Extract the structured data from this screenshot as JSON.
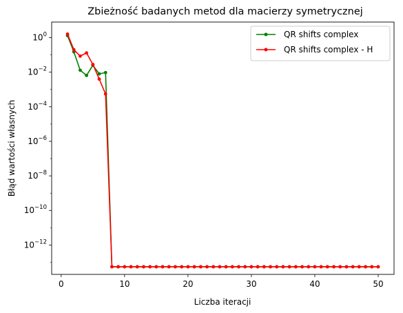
{
  "chart_data": {
    "type": "line",
    "title": "Zbieżność badanych metod dla macierzy symetrycznej",
    "xlabel": "Liczba iteracji",
    "ylabel": "Błąd wartości własnych",
    "yscale": "log",
    "xlim": [
      -1.5,
      52.5
    ],
    "ylim": [
      -13.7,
      0.9
    ],
    "x_ticks": [
      0,
      10,
      20,
      30,
      40,
      50
    ],
    "x_tick_labels": [
      "0",
      "10",
      "20",
      "30",
      "40",
      "50"
    ],
    "y_ticks": [
      0,
      -2,
      -4,
      -6,
      -8,
      -10,
      -12
    ],
    "y_tick_labels": [
      {
        "base": "10",
        "exp": "0"
      },
      {
        "base": "10",
        "exp": "−2"
      },
      {
        "base": "10",
        "exp": "−4"
      },
      {
        "base": "10",
        "exp": "−6"
      },
      {
        "base": "10",
        "exp": "−8"
      },
      {
        "base": "10",
        "exp": "−10"
      },
      {
        "base": "10",
        "exp": "−12"
      }
    ],
    "grid": false,
    "legend_position": "top-right",
    "series": [
      {
        "name": "QR shifts complex",
        "color": "#008000",
        "x": [
          1,
          2,
          3,
          4,
          5,
          6,
          7,
          8,
          9,
          10,
          11,
          12,
          13,
          14,
          15,
          16,
          17,
          18,
          19,
          20,
          21,
          22,
          23,
          24,
          25,
          26,
          27,
          28,
          29,
          30,
          31,
          32,
          33,
          34,
          35,
          36,
          37,
          38,
          39,
          40,
          41,
          42,
          43,
          44,
          45,
          46,
          47,
          48,
          49,
          50
        ],
        "y": [
          1.3,
          0.15,
          0.013,
          0.0065,
          0.025,
          0.008,
          0.0095,
          5.5e-14,
          5.5e-14,
          5.5e-14,
          5.5e-14,
          5.5e-14,
          5.5e-14,
          5.5e-14,
          5.5e-14,
          5.5e-14,
          5.5e-14,
          5.5e-14,
          5.5e-14,
          5.5e-14,
          5.5e-14,
          5.5e-14,
          5.5e-14,
          5.5e-14,
          5.5e-14,
          5.5e-14,
          5.5e-14,
          5.5e-14,
          5.5e-14,
          5.5e-14,
          5.5e-14,
          5.5e-14,
          5.5e-14,
          5.5e-14,
          5.5e-14,
          5.5e-14,
          5.5e-14,
          5.5e-14,
          5.5e-14,
          5.5e-14,
          5.5e-14,
          5.5e-14,
          5.5e-14,
          5.5e-14,
          5.5e-14,
          5.5e-14,
          5.5e-14,
          5.5e-14,
          5.5e-14,
          5.5e-14
        ]
      },
      {
        "name": "QR shifts complex - H",
        "color": "#ff0000",
        "x": [
          1,
          2,
          3,
          4,
          5,
          6,
          7,
          8,
          9,
          10,
          11,
          12,
          13,
          14,
          15,
          16,
          17,
          18,
          19,
          20,
          21,
          22,
          23,
          24,
          25,
          26,
          27,
          28,
          29,
          30,
          31,
          32,
          33,
          34,
          35,
          36,
          37,
          38,
          39,
          40,
          41,
          42,
          43,
          44,
          45,
          46,
          47,
          48,
          49,
          50
        ],
        "y": [
          1.6,
          0.2,
          0.085,
          0.13,
          0.028,
          0.004,
          0.00055,
          5.5e-14,
          5.5e-14,
          5.5e-14,
          5.5e-14,
          5.5e-14,
          5.5e-14,
          5.5e-14,
          5.5e-14,
          5.5e-14,
          5.5e-14,
          5.5e-14,
          5.5e-14,
          5.5e-14,
          5.5e-14,
          5.5e-14,
          5.5e-14,
          5.5e-14,
          5.5e-14,
          5.5e-14,
          5.5e-14,
          5.5e-14,
          5.5e-14,
          5.5e-14,
          5.5e-14,
          5.5e-14,
          5.5e-14,
          5.5e-14,
          5.5e-14,
          5.5e-14,
          5.5e-14,
          5.5e-14,
          5.5e-14,
          5.5e-14,
          5.5e-14,
          5.5e-14,
          5.5e-14,
          5.5e-14,
          5.5e-14,
          5.5e-14,
          5.5e-14,
          5.5e-14,
          5.5e-14,
          5.5e-14
        ]
      }
    ]
  }
}
